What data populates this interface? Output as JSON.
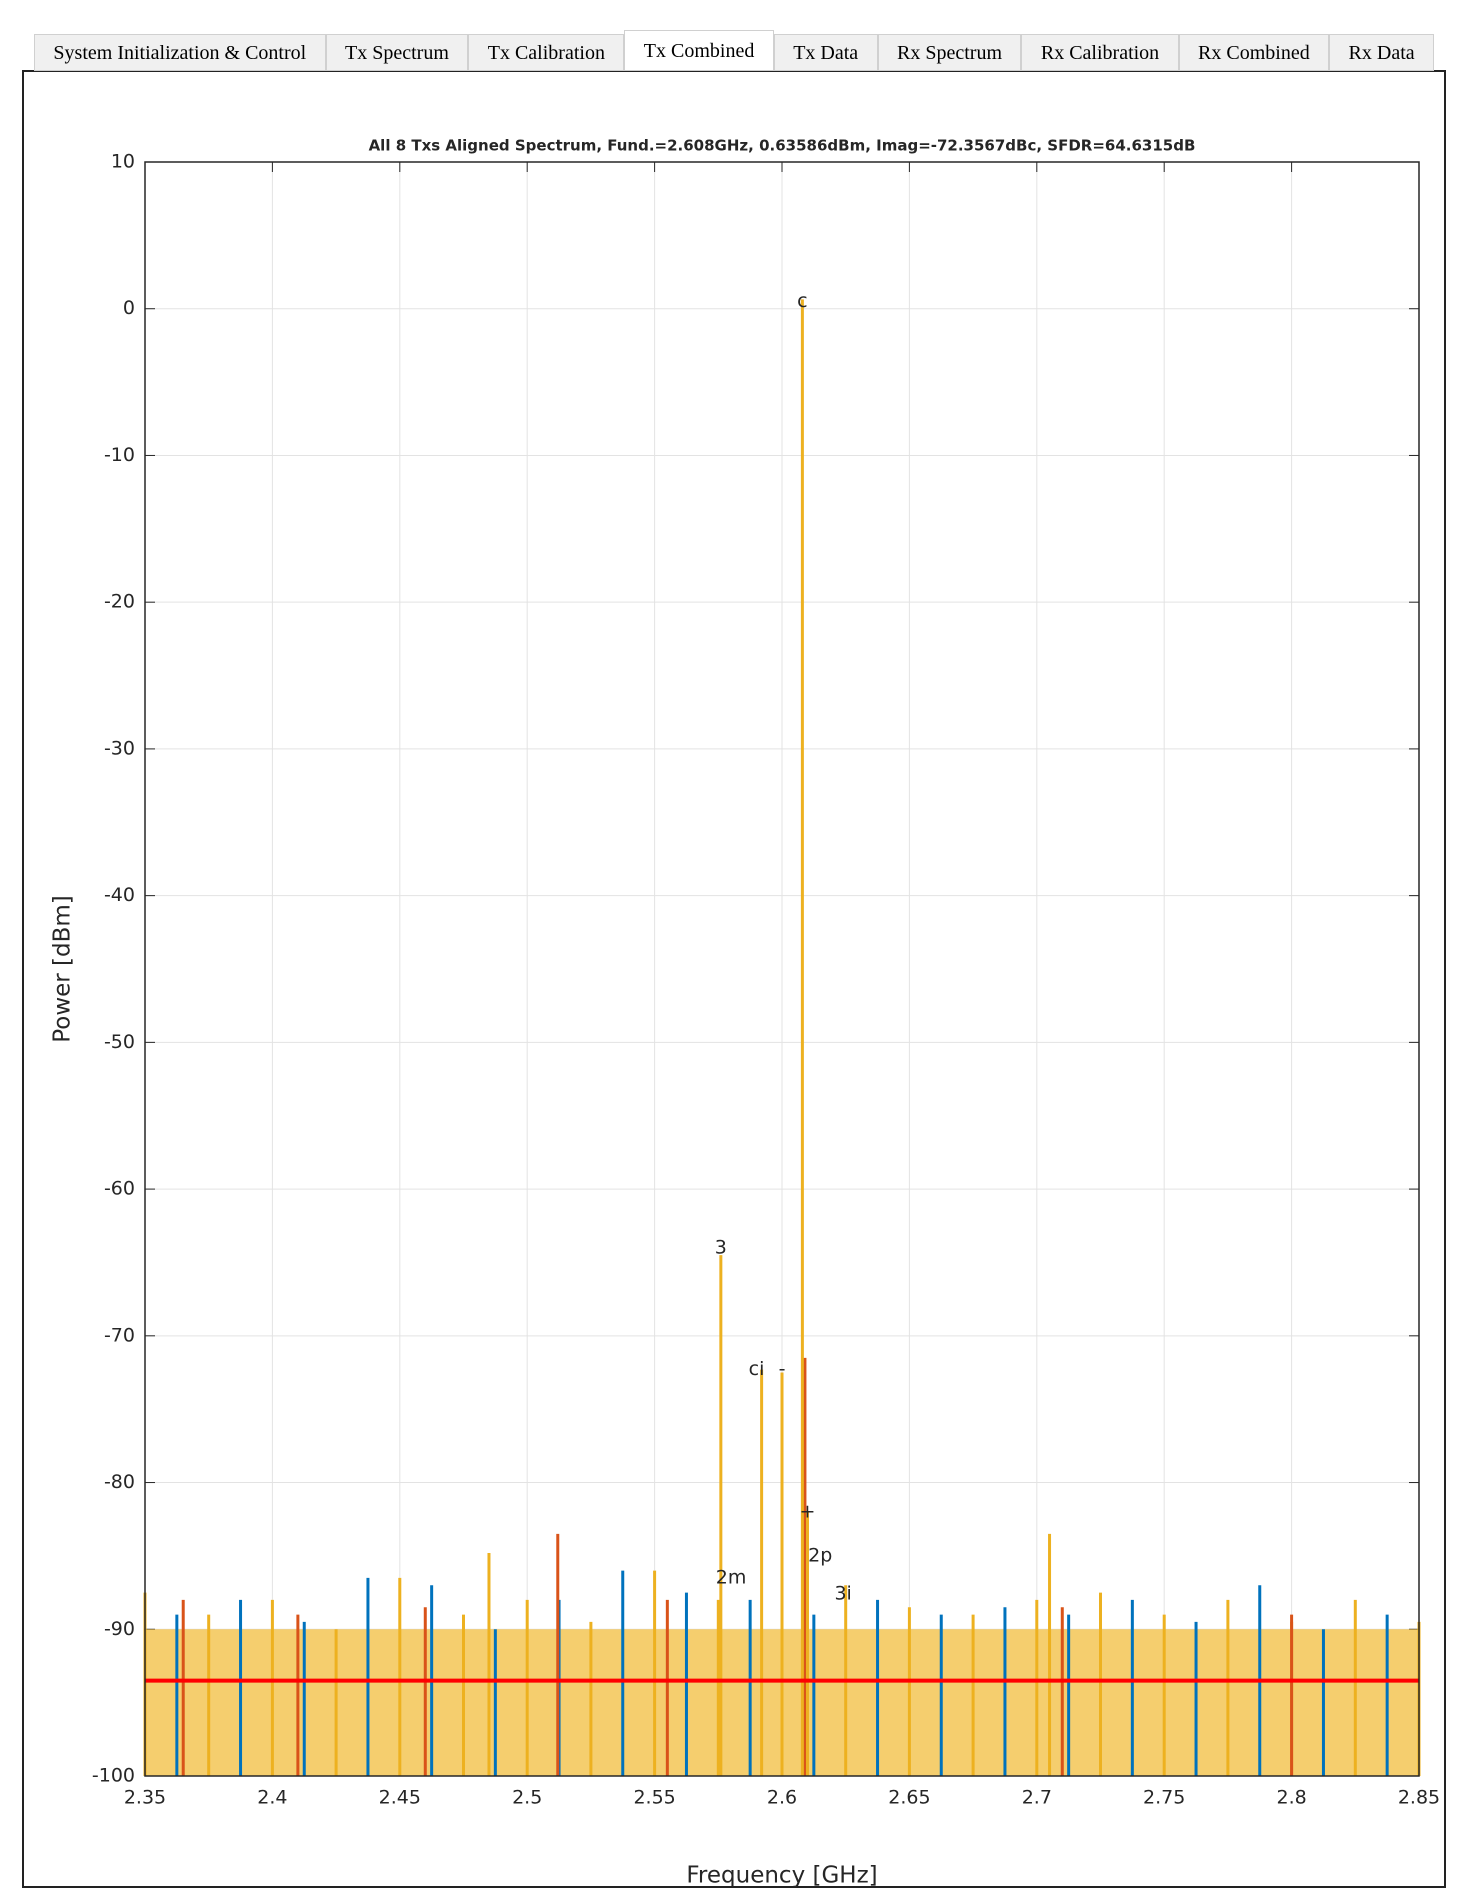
{
  "tabs": [
    "System Initialization & Control",
    "Tx Spectrum",
    "Tx Calibration",
    "Tx Combined",
    "Tx Data",
    "Rx Spectrum",
    "Rx Calibration",
    "Rx Combined",
    "Rx Data"
  ],
  "active_tab": 3,
  "chart_data": {
    "type": "stem",
    "title": "All 8 Txs Aligned Spectrum, Fund.=2.608GHz, 0.63586dBm, Imag=-72.3567dBc, SFDR=64.6315dB",
    "xlabel": "Frequency [GHz]",
    "ylabel": "Power [dBm]",
    "xlim": [
      2.35,
      2.85
    ],
    "ylim": [
      -100,
      10
    ],
    "xticks": [
      2.35,
      2.4,
      2.45,
      2.5,
      2.55,
      2.6,
      2.65,
      2.7,
      2.75,
      2.8,
      2.85
    ],
    "yticks": [
      -100,
      -90,
      -80,
      -70,
      -60,
      -50,
      -40,
      -30,
      -20,
      -10,
      0,
      10
    ],
    "grid": true,
    "series": [
      {
        "type": "area",
        "color": "#f2c24a",
        "x": [
          2.35,
          2.85
        ],
        "values": [
          -90,
          -90
        ]
      },
      {
        "type": "stem",
        "color": "#edb120",
        "x": [
          2.35,
          2.375,
          2.4,
          2.425,
          2.45,
          2.475,
          2.5,
          2.525,
          2.55,
          2.575,
          2.6,
          2.625,
          2.65,
          2.675,
          2.7,
          2.725,
          2.75,
          2.775,
          2.8,
          2.825,
          2.85
        ],
        "values": [
          -87.5,
          -89,
          -88,
          -90,
          -86.5,
          -89,
          -88,
          -89.5,
          -86,
          -88,
          -89,
          -87,
          -88.5,
          -89,
          -88,
          -87.5,
          -89,
          -88,
          -89.5,
          -88,
          -89.5
        ]
      },
      {
        "type": "stem",
        "color": "#0072bd",
        "x": [
          2.3625,
          2.3875,
          2.4125,
          2.4375,
          2.4625,
          2.4875,
          2.5125,
          2.5375,
          2.5625,
          2.5875,
          2.6125,
          2.6375,
          2.6625,
          2.6875,
          2.7125,
          2.7375,
          2.7625,
          2.7875,
          2.8125,
          2.8375
        ],
        "values": [
          -89,
          -88,
          -89.5,
          -86.5,
          -87,
          -90,
          -88,
          -86,
          -87.5,
          -88,
          -89,
          -88,
          -89,
          -88.5,
          -89,
          -88,
          -89.5,
          -87,
          -90,
          -89
        ]
      },
      {
        "type": "stem",
        "color": "#d95319",
        "x": [
          2.365,
          2.41,
          2.46,
          2.512,
          2.555,
          2.609,
          2.71,
          2.8
        ],
        "values": [
          -88,
          -89,
          -88.5,
          -83.5,
          -88,
          -71.5,
          -88.5,
          -89
        ]
      },
      {
        "type": "stem",
        "color": "#edb120",
        "x": [
          2.485,
          2.576,
          2.592,
          2.6,
          2.608,
          2.61,
          2.705
        ],
        "values": [
          -84.8,
          -64.5,
          -72.3,
          -72.5,
          0.636,
          -82,
          -83.5
        ]
      },
      {
        "type": "line",
        "color": "#ff0000",
        "x": [
          2.35,
          2.85
        ],
        "values": [
          -93.5,
          -93.5
        ]
      }
    ],
    "annotations": [
      {
        "text": "c",
        "x": 2.608,
        "y": 0.5
      },
      {
        "text": "3",
        "x": 2.576,
        "y": -64
      },
      {
        "text": "ci",
        "x": 2.59,
        "y": -72.3
      },
      {
        "text": "-",
        "x": 2.6,
        "y": -72.3
      },
      {
        "text": "+",
        "x": 2.61,
        "y": -82
      },
      {
        "text": "2p",
        "x": 2.615,
        "y": -85
      },
      {
        "text": "2m",
        "x": 2.58,
        "y": -86.5
      },
      {
        "text": "3i",
        "x": 2.624,
        "y": -87.6
      }
    ]
  }
}
